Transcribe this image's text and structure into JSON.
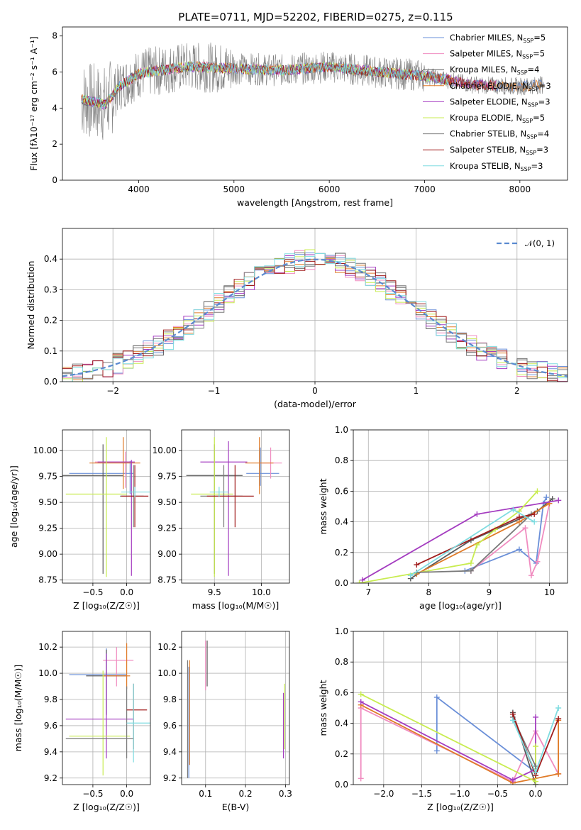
{
  "title": "PLATE=0711, MJD=52202, FIBERID=0275, z=0.115",
  "palette": [
    "#6a8fd8",
    "#f08cc0",
    "#5a5a5a",
    "#e07b28",
    "#a43cc0",
    "#c8ec50",
    "#7a7a7a",
    "#a01c1c",
    "#7fdce0"
  ],
  "chart_data": [
    {
      "type": "line",
      "name": "spectrum",
      "xlabel": "wavelength [Angstrom, rest frame]",
      "ylabel": "Flux [fλ10⁻¹⁷ erg cm⁻² s⁻¹ A⁻¹]",
      "xlim": [
        3200,
        8500
      ],
      "ylim": [
        0,
        8.5
      ],
      "xticks": [
        "4000",
        "5000",
        "6000",
        "7000",
        "8000"
      ],
      "yticks": [
        "0",
        "2",
        "4",
        "6",
        "8"
      ],
      "grid": false,
      "legend_position": "top-right",
      "legend": [
        "Chabrier MILES, N_SSP=5",
        "Salpeter MILES, N_SSP=5",
        "Kroupa MILES, N_SSP=4",
        "Chabrier ELODIE, N_SSP=3",
        "Salpeter ELODIE, N_SSP=3",
        "Kroupa ELODIE, N_SSP=5",
        "Chabrier STELIB, N_SSP=4",
        "Salpeter STELIB, N_SSP=3",
        "Kroupa STELIB, N_SSP=3"
      ],
      "data_range": [
        3400,
        8250
      ],
      "continuum": [
        [
          3400,
          4.5
        ],
        [
          3650,
          4.2
        ],
        [
          3800,
          5.2
        ],
        [
          4000,
          5.9
        ],
        [
          4500,
          6.3
        ],
        [
          5000,
          6.2
        ],
        [
          5500,
          6.1
        ],
        [
          6000,
          6.3
        ],
        [
          6500,
          6.0
        ],
        [
          7000,
          5.8
        ],
        [
          7500,
          5.3
        ],
        [
          8000,
          5.2
        ],
        [
          8250,
          5.3
        ]
      ]
    },
    {
      "type": "step",
      "name": "residuals",
      "xlabel": "(data-model)/error",
      "ylabel": "Normed distribution",
      "xlim": [
        -2.5,
        2.5
      ],
      "ylim": [
        0,
        0.5
      ],
      "xticks": [
        "−2",
        "−1",
        "0",
        "1",
        "2"
      ],
      "yticks": [
        "0.0",
        "0.1",
        "0.2",
        "0.3",
        "0.4"
      ],
      "grid": true,
      "legend_position": "top-right",
      "legend": [
        "𝒩(0, 1)"
      ],
      "bin_width": 0.1
    },
    {
      "type": "errorbar",
      "name": "age-vs-Z",
      "xlabel": "Z [log₁₀(Z/Z☉)]",
      "ylabel": "age  [log₁₀(age/yr)]",
      "xlim": [
        -0.95,
        0.35
      ],
      "ylim": [
        8.72,
        10.2
      ],
      "xticks": [
        "−0.5",
        "0.0"
      ],
      "yticks": [
        "8.75",
        "9.00",
        "9.25",
        "9.50",
        "9.75",
        "10.00"
      ],
      "grid": true,
      "points": [
        {
          "x": 0.05,
          "y": 9.78,
          "xerr": [
            0.9,
            0.05
          ],
          "yerr": [
            0.2,
            0.12
          ]
        },
        {
          "x": -0.02,
          "y": 9.89,
          "xerr": [
            0.45,
            0.1
          ],
          "yerr": [
            0.25,
            0.1
          ]
        },
        {
          "x": -0.35,
          "y": 9.76,
          "xerr": [
            0.6,
            0.3
          ],
          "yerr": [
            0.95,
            0.3
          ]
        },
        {
          "x": -0.05,
          "y": 9.88,
          "xerr": [
            0.5,
            0.25
          ],
          "yerr": [
            0.25,
            0.25
          ]
        },
        {
          "x": 0.07,
          "y": 9.89,
          "xerr": [
            0.5,
            0.05
          ],
          "yerr": [
            1.1,
            0.02
          ]
        },
        {
          "x": -0.3,
          "y": 9.58,
          "xerr": [
            0.6,
            0.3
          ],
          "yerr": [
            0.8,
            0.55
          ]
        },
        {
          "x": 0.1,
          "y": 9.56,
          "xerr": [
            0.2,
            0.15
          ],
          "yerr": [
            0.3,
            0.3
          ]
        },
        {
          "x": 0.12,
          "y": 9.56,
          "xerr": [
            0.2,
            0.2
          ],
          "yerr": [
            0.3,
            0.3
          ]
        },
        {
          "x": 0.12,
          "y": 9.6,
          "xerr": [
            0.2,
            0.22
          ],
          "yerr": [
            0.05,
            0.05
          ]
        }
      ]
    },
    {
      "type": "errorbar",
      "name": "age-vs-mass",
      "xlabel": "mass [log₁₀(M/M☉)]",
      "ylabel": "",
      "xlim": [
        9.15,
        10.3
      ],
      "ylim": [
        8.72,
        10.2
      ],
      "xticks": [
        "9.5",
        "10.0"
      ],
      "yticks": [
        "8.75",
        "9.00",
        "9.25",
        "9.50",
        "9.75",
        "10.00"
      ],
      "grid": true,
      "points": [
        {
          "x": 9.99,
          "y": 9.78,
          "xerr": [
            0.15,
            0.2
          ],
          "yerr": [
            0.12,
            0.25
          ]
        },
        {
          "x": 10.1,
          "y": 9.88,
          "xerr": [
            0.1,
            0.12
          ],
          "yerr": [
            0.15,
            0.15
          ]
        },
        {
          "x": 9.5,
          "y": 9.76,
          "xerr": [
            0.3,
            0.3
          ],
          "yerr": [
            0.95,
            0.3
          ]
        },
        {
          "x": 9.98,
          "y": 9.88,
          "xerr": [
            0.15,
            0.15
          ],
          "yerr": [
            0.3,
            0.25
          ]
        },
        {
          "x": 9.65,
          "y": 9.89,
          "xerr": [
            0.3,
            0.2
          ],
          "yerr": [
            1.1,
            0.2
          ]
        },
        {
          "x": 9.5,
          "y": 9.58,
          "xerr": [
            0.25,
            0.2
          ],
          "yerr": [
            0.8,
            0.55
          ]
        },
        {
          "x": 9.6,
          "y": 9.56,
          "xerr": [
            0.25,
            0.2
          ],
          "yerr": [
            0.3,
            0.3
          ]
        },
        {
          "x": 9.72,
          "y": 9.56,
          "xerr": [
            0.3,
            0.2
          ],
          "yerr": [
            0.3,
            0.3
          ]
        },
        {
          "x": 9.55,
          "y": 9.6,
          "xerr": [
            0.1,
            0.1
          ],
          "yerr": [
            0.05,
            0.05
          ]
        }
      ]
    },
    {
      "type": "line",
      "name": "weight-vs-age",
      "xlabel": "age  [log₁₀(age/yr)]",
      "ylabel": "mass weight",
      "xlim": [
        6.75,
        10.3
      ],
      "ylim": [
        0,
        1.0
      ],
      "xticks": [
        "7",
        "8",
        "9",
        "10"
      ],
      "yticks": [
        "0.0",
        "0.2",
        "0.4",
        "0.6",
        "0.8",
        "1.0"
      ],
      "grid": true,
      "series": [
        {
          "x": [
            8.6,
            9.5,
            9.78,
            9.9,
            9.95
          ],
          "y": [
            0.08,
            0.22,
            0.13,
            0.52,
            0.56
          ]
        },
        {
          "x": [
            8.7,
            9.6,
            9.7,
            9.8,
            10.0
          ],
          "y": [
            0.08,
            0.36,
            0.05,
            0.14,
            0.52
          ]
        },
        {
          "x": [
            7.7,
            8.7,
            9.8,
            10.05
          ],
          "y": [
            0.03,
            0.28,
            0.47,
            0.55
          ]
        },
        {
          "x": [
            7.8,
            9.5,
            10.0
          ],
          "y": [
            0.06,
            0.4,
            0.52
          ]
        },
        {
          "x": [
            6.9,
            8.8,
            10.15
          ],
          "y": [
            0.02,
            0.45,
            0.54
          ]
        },
        {
          "x": [
            6.85,
            8.7,
            8.8,
            9.1,
            9.5,
            9.8
          ],
          "y": [
            0.0,
            0.13,
            0.25,
            0.35,
            0.47,
            0.6
          ]
        },
        {
          "x": [
            7.8,
            8.7,
            9.7
          ],
          "y": [
            0.07,
            0.08,
            0.45
          ]
        },
        {
          "x": [
            7.8,
            9.5,
            9.75
          ],
          "y": [
            0.12,
            0.43,
            0.45
          ]
        },
        {
          "x": [
            7.7,
            9.4,
            9.75
          ],
          "y": [
            0.05,
            0.48,
            0.4
          ]
        }
      ]
    },
    {
      "type": "errorbar",
      "name": "mass-vs-Z",
      "xlabel": "Z [log₁₀(Z/Z☉)]",
      "ylabel": "mass [log₁₀(M/M☉)]",
      "xlim": [
        -0.95,
        0.35
      ],
      "ylim": [
        9.15,
        10.32
      ],
      "xticks": [
        "−0.5",
        "0.0"
      ],
      "yticks": [
        "9.2",
        "9.4",
        "9.6",
        "9.8",
        "10.0",
        "10.2"
      ],
      "grid": true,
      "points": [
        {
          "x": -0.3,
          "y": 9.99,
          "xerr": [
            0.55,
            0.3
          ],
          "yerr": [
            0.3,
            0.2
          ]
        },
        {
          "x": -0.15,
          "y": 10.1,
          "xerr": [
            0.2,
            0.25
          ],
          "yerr": [
            0.2,
            0.1
          ]
        },
        {
          "x": -0.3,
          "y": 9.98,
          "xerr": [
            0.3,
            0.3
          ],
          "yerr": [
            0.3,
            0.2
          ]
        },
        {
          "x": 0.0,
          "y": 9.98,
          "xerr": [
            0.35,
            0.05
          ],
          "yerr": [
            0.1,
            0.25
          ]
        },
        {
          "x": -0.3,
          "y": 9.65,
          "xerr": [
            0.6,
            0.4
          ],
          "yerr": [
            0.3,
            0.5
          ]
        },
        {
          "x": -0.35,
          "y": 9.52,
          "xerr": [
            0.5,
            0.4
          ],
          "yerr": [
            0.3,
            0.5
          ]
        },
        {
          "x": 0.0,
          "y": 9.5,
          "xerr": [
            0.9,
            0.1
          ],
          "yerr": [
            0.15,
            0.4
          ]
        },
        {
          "x": 0.1,
          "y": 9.72,
          "xerr": [
            0.1,
            0.2
          ],
          "yerr": [
            0.3,
            0.2
          ]
        },
        {
          "x": 0.1,
          "y": 9.62,
          "xerr": [
            0.1,
            0.25
          ],
          "yerr": [
            0.3,
            0.3
          ]
        }
      ]
    },
    {
      "type": "errorbar",
      "name": "mass-vs-ebv",
      "xlabel": "E(B-V)",
      "ylabel": "",
      "xlim": [
        0.04,
        0.31
      ],
      "ylim": [
        9.15,
        10.32
      ],
      "xticks": [
        "0.1",
        "0.2",
        "0.3"
      ],
      "yticks": [
        "9.2",
        "9.4",
        "9.6",
        "9.8",
        "10.0",
        "10.2"
      ],
      "grid": true,
      "points": [
        {
          "x": 0.058,
          "y": 9.5,
          "xerr": [
            0,
            0
          ],
          "yerr": [
            0.3,
            0.55
          ]
        },
        {
          "x": 0.1,
          "y": 10.05,
          "xerr": [
            0,
            0
          ],
          "yerr": [
            0.18,
            0.2
          ]
        },
        {
          "x": 0.104,
          "y": 10.05,
          "xerr": [
            0,
            0
          ],
          "yerr": [
            0.15,
            0.2
          ]
        },
        {
          "x": 0.06,
          "y": 9.7,
          "xerr": [
            0,
            0
          ],
          "yerr": [
            0.4,
            0.4
          ]
        },
        {
          "x": 0.295,
          "y": 9.6,
          "xerr": [
            0,
            0
          ],
          "yerr": [
            0.25,
            0.25
          ]
        },
        {
          "x": 0.298,
          "y": 9.62,
          "xerr": [
            0,
            0
          ],
          "yerr": [
            0.2,
            0.3
          ]
        },
        {
          "x": 0.055,
          "y": 9.65,
          "xerr": [
            0,
            0
          ],
          "yerr": [
            0.45,
            0.45
          ]
        }
      ]
    },
    {
      "type": "line",
      "name": "weight-vs-Z",
      "xlabel": "Z [log₁₀(Z/Z☉)]",
      "ylabel": "mass weight",
      "xlim": [
        -2.4,
        0.42
      ],
      "ylim": [
        0,
        1.0
      ],
      "xticks": [
        "−2.0",
        "−1.5",
        "−1.0",
        "−0.5",
        "0.0"
      ],
      "yticks": [
        "0.0",
        "0.2",
        "0.4",
        "0.6",
        "0.8",
        "1.0"
      ],
      "grid": true,
      "series": [
        {
          "x": [
            -1.3,
            -1.3,
            0.0,
            0.0
          ],
          "y": [
            0.22,
            0.57,
            0.08,
            0.1
          ]
        },
        {
          "x": [
            -2.3,
            -2.3,
            -0.3,
            0.0,
            0.3
          ],
          "y": [
            0.04,
            0.5,
            0.02,
            0.35,
            0.07
          ]
        },
        {
          "x": [
            -0.3,
            0.0,
            0.0
          ],
          "y": [
            0.47,
            0.0,
            0.1
          ]
        },
        {
          "x": [
            -2.3,
            -0.3,
            0.3,
            0.3
          ],
          "y": [
            0.52,
            0.01,
            0.07,
            0.42
          ]
        },
        {
          "x": [
            -2.3,
            -0.3,
            0.0,
            0.0
          ],
          "y": [
            0.54,
            0.03,
            0.1,
            0.44
          ]
        },
        {
          "x": [
            -2.3,
            0.0,
            0.0
          ],
          "y": [
            0.59,
            0.02,
            0.25
          ]
        },
        {
          "x": [
            -0.3,
            0.0
          ],
          "y": [
            0.44,
            0.12
          ]
        },
        {
          "x": [
            -0.3,
            0.0,
            0.3
          ],
          "y": [
            0.46,
            0.06,
            0.43
          ]
        },
        {
          "x": [
            -0.3,
            0.0,
            0.3
          ],
          "y": [
            0.42,
            0.08,
            0.5
          ]
        }
      ]
    }
  ]
}
